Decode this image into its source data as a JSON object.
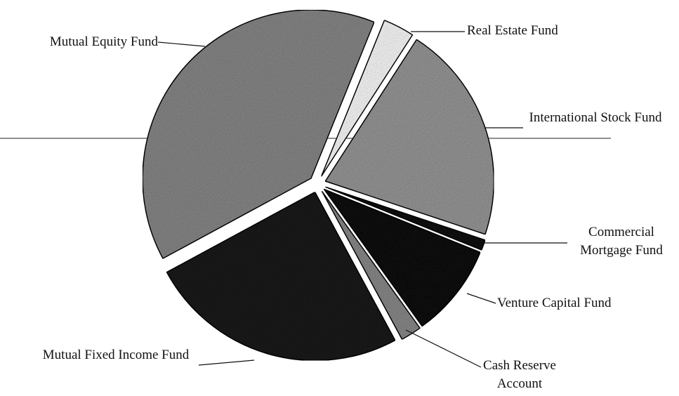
{
  "chart_data": {
    "type": "pie",
    "categories": [
      "Real Estate Fund",
      "International Stock Fund",
      "Commercial Mortgage Fund",
      "Venture Capital Fund",
      "Cash Reserve Account",
      "Mutual Fixed Income Fund",
      "Mutual Equity Fund"
    ],
    "values": [
      3,
      21,
      1,
      9,
      2,
      25,
      39
    ],
    "colors": [
      "#ffffff",
      "#9a9a9a",
      "#111111",
      "#0a0a0a",
      "#8c8c8c",
      "#1c1c1c",
      "#8a8a8a"
    ]
  }
}
